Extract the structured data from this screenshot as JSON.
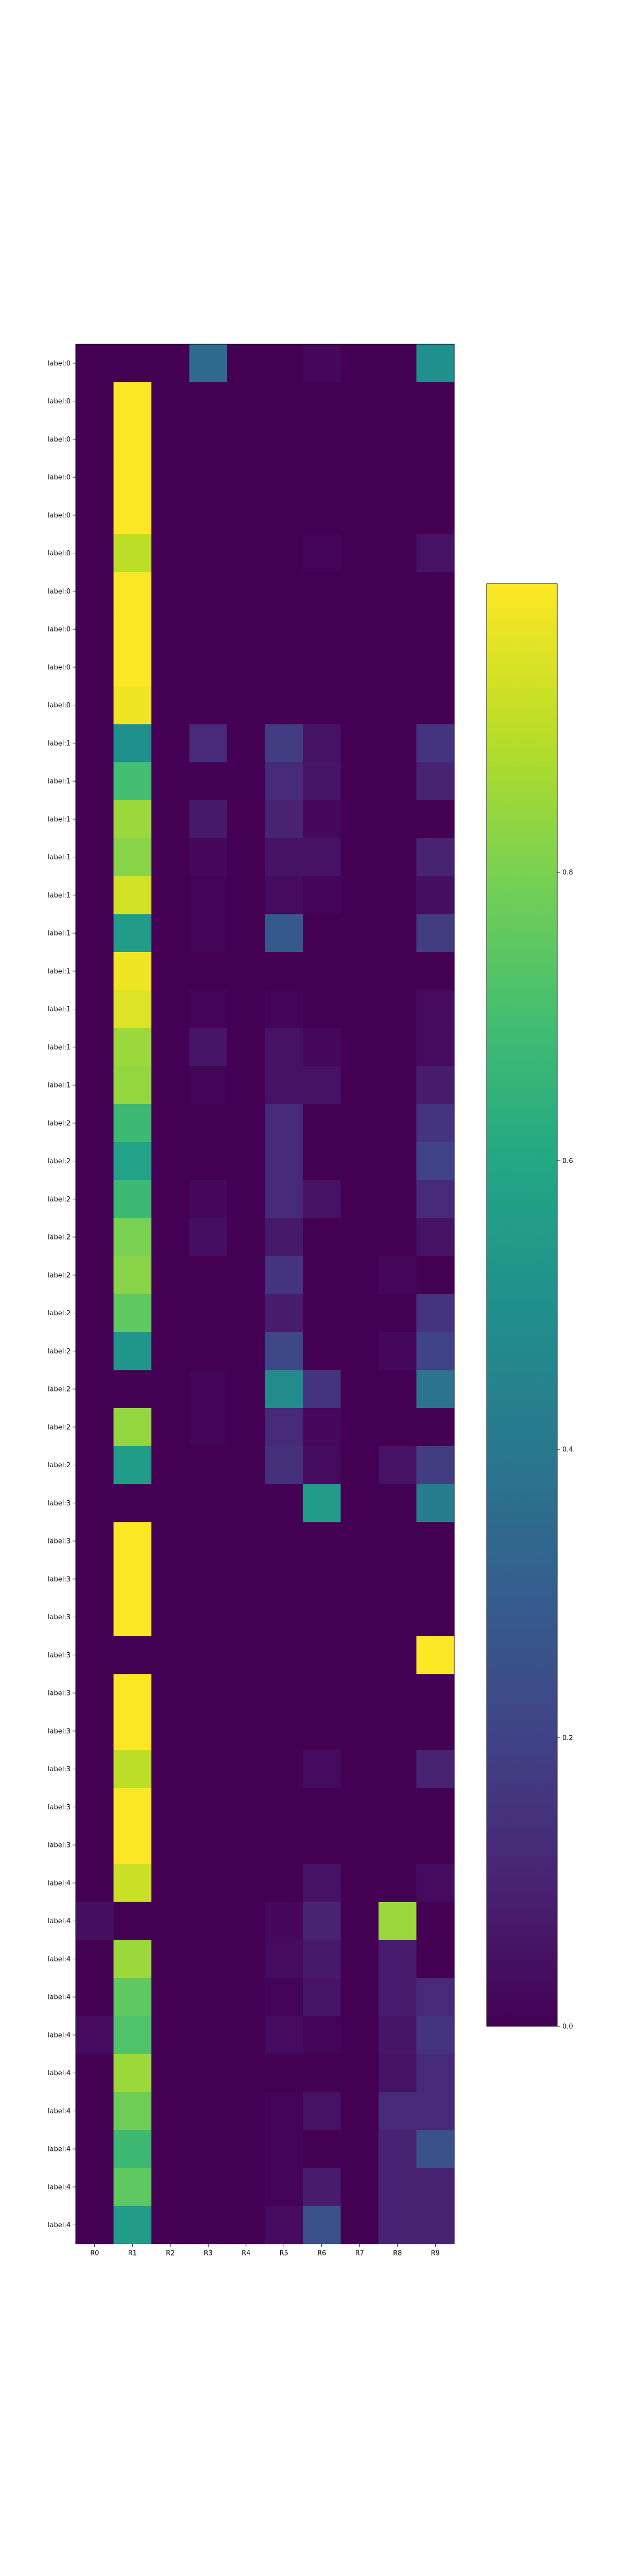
{
  "chart_data": {
    "type": "heatmap",
    "title": "",
    "xlabel": "",
    "ylabel": "",
    "x_labels": [
      "R0",
      "R1",
      "R2",
      "R3",
      "R4",
      "R5",
      "R6",
      "R7",
      "R8",
      "R9"
    ],
    "y_labels": [
      "label:0",
      "label:0",
      "label:0",
      "label:0",
      "label:0",
      "label:0",
      "label:0",
      "label:0",
      "label:0",
      "label:0",
      "label:1",
      "label:1",
      "label:1",
      "label:1",
      "label:1",
      "label:1",
      "label:1",
      "label:1",
      "label:1",
      "label:1",
      "label:2",
      "label:2",
      "label:2",
      "label:2",
      "label:2",
      "label:2",
      "label:2",
      "label:2",
      "label:2",
      "label:2",
      "label:3",
      "label:3",
      "label:3",
      "label:3",
      "label:3",
      "label:3",
      "label:3",
      "label:3",
      "label:3",
      "label:3",
      "label:4",
      "label:4",
      "label:4",
      "label:4",
      "label:4",
      "label:4",
      "label:4",
      "label:4",
      "label:4",
      "label:4"
    ],
    "values": [
      [
        0.0,
        0.0,
        0.0,
        0.35,
        0.0,
        0.0,
        0.02,
        0.0,
        0.0,
        0.5
      ],
      [
        0.0,
        1.0,
        0.0,
        0.0,
        0.0,
        0.0,
        0.0,
        0.0,
        0.0,
        0.0
      ],
      [
        0.0,
        1.0,
        0.0,
        0.0,
        0.0,
        0.0,
        0.0,
        0.0,
        0.0,
        0.0
      ],
      [
        0.0,
        1.0,
        0.0,
        0.0,
        0.0,
        0.0,
        0.0,
        0.0,
        0.0,
        0.0
      ],
      [
        0.0,
        1.0,
        0.0,
        0.0,
        0.0,
        0.0,
        0.0,
        0.0,
        0.0,
        0.0
      ],
      [
        0.0,
        0.9,
        0.0,
        0.0,
        0.0,
        0.0,
        0.01,
        0.0,
        0.0,
        0.05
      ],
      [
        0.0,
        1.0,
        0.0,
        0.0,
        0.0,
        0.0,
        0.0,
        0.0,
        0.0,
        0.0
      ],
      [
        0.0,
        1.0,
        0.0,
        0.0,
        0.0,
        0.0,
        0.0,
        0.0,
        0.0,
        0.0
      ],
      [
        0.0,
        1.0,
        0.0,
        0.0,
        0.0,
        0.0,
        0.0,
        0.0,
        0.0,
        0.0
      ],
      [
        0.0,
        0.98,
        0.0,
        0.0,
        0.0,
        0.0,
        0.0,
        0.0,
        0.0,
        0.0
      ],
      [
        0.0,
        0.5,
        0.0,
        0.12,
        0.0,
        0.18,
        0.05,
        0.0,
        0.0,
        0.15
      ],
      [
        0.0,
        0.7,
        0.0,
        0.0,
        0.0,
        0.12,
        0.06,
        0.0,
        0.0,
        0.1
      ],
      [
        0.0,
        0.85,
        0.0,
        0.07,
        0.0,
        0.1,
        0.02,
        0.0,
        0.0,
        0.0
      ],
      [
        0.0,
        0.82,
        0.0,
        0.02,
        0.0,
        0.05,
        0.05,
        0.0,
        0.0,
        0.1
      ],
      [
        0.0,
        0.93,
        0.0,
        0.01,
        0.0,
        0.03,
        0.01,
        0.0,
        0.0,
        0.04
      ],
      [
        0.0,
        0.55,
        0.0,
        0.01,
        0.0,
        0.28,
        0.0,
        0.0,
        0.0,
        0.18
      ],
      [
        0.0,
        0.98,
        0.0,
        0.0,
        0.0,
        0.0,
        0.0,
        0.0,
        0.0,
        0.0
      ],
      [
        0.0,
        0.95,
        0.0,
        0.01,
        0.0,
        0.01,
        0.0,
        0.0,
        0.0,
        0.03
      ],
      [
        0.0,
        0.85,
        0.0,
        0.06,
        0.0,
        0.05,
        0.02,
        0.0,
        0.0,
        0.03
      ],
      [
        0.0,
        0.84,
        0.0,
        0.01,
        0.0,
        0.05,
        0.05,
        0.0,
        0.0,
        0.08
      ],
      [
        0.0,
        0.68,
        0.0,
        0.0,
        0.0,
        0.12,
        0.0,
        0.0,
        0.0,
        0.15
      ],
      [
        0.0,
        0.58,
        0.0,
        0.0,
        0.0,
        0.12,
        0.0,
        0.0,
        0.0,
        0.2
      ],
      [
        0.0,
        0.68,
        0.0,
        0.02,
        0.0,
        0.12,
        0.05,
        0.0,
        0.0,
        0.12
      ],
      [
        0.0,
        0.8,
        0.0,
        0.04,
        0.0,
        0.07,
        0.0,
        0.0,
        0.0,
        0.05
      ],
      [
        0.0,
        0.82,
        0.0,
        0.0,
        0.0,
        0.15,
        0.0,
        0.0,
        0.02,
        0.0
      ],
      [
        0.0,
        0.75,
        0.0,
        0.0,
        0.0,
        0.08,
        0.0,
        0.0,
        0.0,
        0.15
      ],
      [
        0.0,
        0.52,
        0.0,
        0.0,
        0.0,
        0.22,
        0.0,
        0.0,
        0.02,
        0.2
      ],
      [
        0.0,
        0.0,
        0.0,
        0.01,
        0.0,
        0.48,
        0.15,
        0.0,
        0.0,
        0.38
      ],
      [
        0.0,
        0.84,
        0.0,
        0.01,
        0.0,
        0.12,
        0.02,
        0.0,
        0.0,
        0.0
      ],
      [
        0.0,
        0.55,
        0.0,
        0.0,
        0.0,
        0.14,
        0.03,
        0.0,
        0.05,
        0.18
      ],
      [
        0.0,
        0.0,
        0.0,
        0.0,
        0.0,
        0.0,
        0.55,
        0.0,
        0.0,
        0.42
      ],
      [
        0.0,
        1.0,
        0.0,
        0.0,
        0.0,
        0.0,
        0.0,
        0.0,
        0.0,
        0.0
      ],
      [
        0.0,
        1.0,
        0.0,
        0.0,
        0.0,
        0.0,
        0.0,
        0.0,
        0.0,
        0.0
      ],
      [
        0.0,
        1.0,
        0.0,
        0.0,
        0.0,
        0.0,
        0.0,
        0.0,
        0.0,
        0.0
      ],
      [
        0.0,
        0.0,
        0.0,
        0.0,
        0.0,
        0.0,
        0.0,
        0.0,
        0.0,
        1.0
      ],
      [
        0.0,
        1.0,
        0.0,
        0.0,
        0.0,
        0.0,
        0.0,
        0.0,
        0.0,
        0.0
      ],
      [
        0.0,
        1.0,
        0.0,
        0.0,
        0.0,
        0.0,
        0.0,
        0.0,
        0.0,
        0.0
      ],
      [
        0.0,
        0.9,
        0.0,
        0.0,
        0.0,
        0.0,
        0.03,
        0.0,
        0.0,
        0.1
      ],
      [
        0.0,
        1.0,
        0.0,
        0.0,
        0.0,
        0.0,
        0.0,
        0.0,
        0.0,
        0.0
      ],
      [
        0.0,
        1.0,
        0.0,
        0.0,
        0.0,
        0.0,
        0.0,
        0.0,
        0.0,
        0.0
      ],
      [
        0.0,
        0.92,
        0.0,
        0.0,
        0.0,
        0.0,
        0.05,
        0.0,
        0.0,
        0.03
      ],
      [
        0.04,
        0.0,
        0.0,
        0.0,
        0.0,
        0.02,
        0.1,
        0.0,
        0.85,
        0.0
      ],
      [
        0.0,
        0.85,
        0.0,
        0.0,
        0.0,
        0.03,
        0.07,
        0.0,
        0.08,
        0.0
      ],
      [
        0.0,
        0.75,
        0.0,
        0.0,
        0.0,
        0.01,
        0.06,
        0.0,
        0.08,
        0.12
      ],
      [
        0.03,
        0.72,
        0.0,
        0.0,
        0.0,
        0.03,
        0.01,
        0.0,
        0.06,
        0.15
      ],
      [
        0.0,
        0.85,
        0.0,
        0.0,
        0.0,
        0.0,
        0.0,
        0.0,
        0.05,
        0.12
      ],
      [
        0.0,
        0.78,
        0.0,
        0.0,
        0.0,
        0.01,
        0.05,
        0.0,
        0.12,
        0.12
      ],
      [
        0.0,
        0.68,
        0.0,
        0.0,
        0.0,
        0.01,
        0.0,
        0.0,
        0.1,
        0.25
      ],
      [
        0.0,
        0.75,
        0.0,
        0.0,
        0.0,
        0.01,
        0.08,
        0.0,
        0.1,
        0.1
      ],
      [
        0.0,
        0.55,
        0.0,
        0.0,
        0.0,
        0.03,
        0.25,
        0.0,
        0.1,
        0.1
      ]
    ],
    "colormap": "viridis",
    "vmin": 0.0,
    "vmax": 1.0,
    "colorbar": {
      "ticks": [
        0.0,
        0.2,
        0.4,
        0.6,
        0.8
      ],
      "tick_labels": [
        "0.0",
        "0.2",
        "0.4",
        "0.6",
        "0.8"
      ],
      "placement": "right"
    }
  }
}
